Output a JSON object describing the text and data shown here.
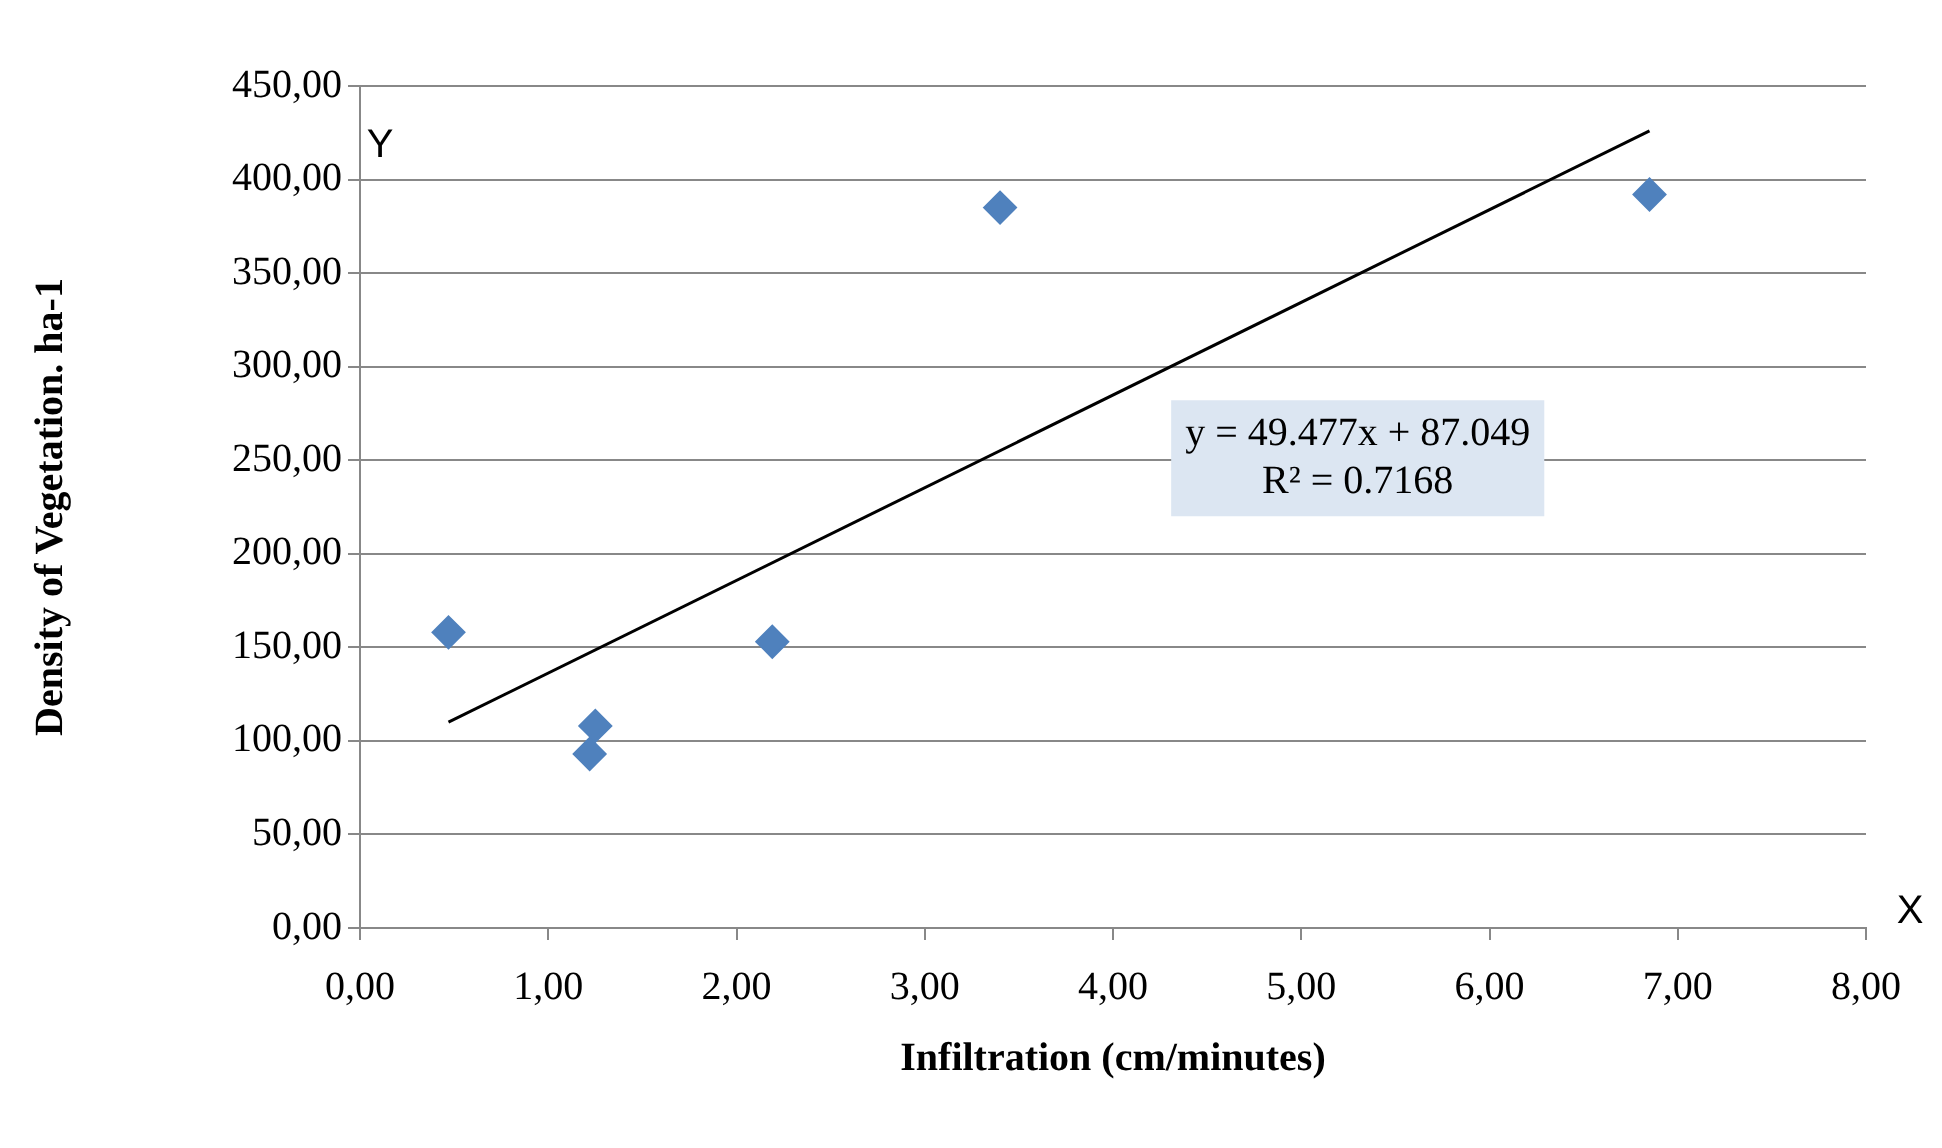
{
  "chart_data": {
    "type": "scatter",
    "xlabel": "Infiltration (cm/minutes)",
    "ylabel": "Density of Vegetation. ha-1",
    "series": [
      {
        "type": "scatter",
        "color": "#4f81bd",
        "x": [
          0.47,
          1.25,
          1.22,
          2.19,
          3.4,
          6.85
        ],
        "values": [
          158,
          108,
          93,
          153,
          385,
          392
        ]
      },
      {
        "type": "line",
        "color": "#000000",
        "marker": "none",
        "x": [
          0.47,
          6.85
        ],
        "values": [
          110,
          426
        ]
      }
    ],
    "xlim": [
      0,
      8
    ],
    "xticks": [
      {
        "value": 0,
        "label": "0,00"
      },
      {
        "value": 1,
        "label": "1,00"
      },
      {
        "value": 2,
        "label": "2,00"
      },
      {
        "value": 3,
        "label": "3,00"
      },
      {
        "value": 4,
        "label": "4,00"
      },
      {
        "value": 5,
        "label": "5,00"
      },
      {
        "value": 6,
        "label": "6,00"
      },
      {
        "value": 7,
        "label": "7,00"
      },
      {
        "value": 8,
        "label": "8,00"
      }
    ],
    "ylim": [
      0,
      450
    ],
    "yticks": [
      {
        "value": 0,
        "label": "0,00"
      },
      {
        "value": 50,
        "label": "50,00"
      },
      {
        "value": 100,
        "label": "100,00"
      },
      {
        "value": 150,
        "label": "150,00"
      },
      {
        "value": 200,
        "label": "200,00"
      },
      {
        "value": 250,
        "label": "250,00"
      },
      {
        "value": 300,
        "label": "300,00"
      },
      {
        "value": 350,
        "label": "350,00"
      },
      {
        "value": 400,
        "label": "400,00"
      },
      {
        "value": 450,
        "label": "450,00"
      }
    ],
    "grid": "y",
    "marker": "diamond",
    "legend": false,
    "annotations": [
      "y = 49.477x + 87.049",
      "R² = 0.7168",
      "Y",
      "X"
    ]
  }
}
